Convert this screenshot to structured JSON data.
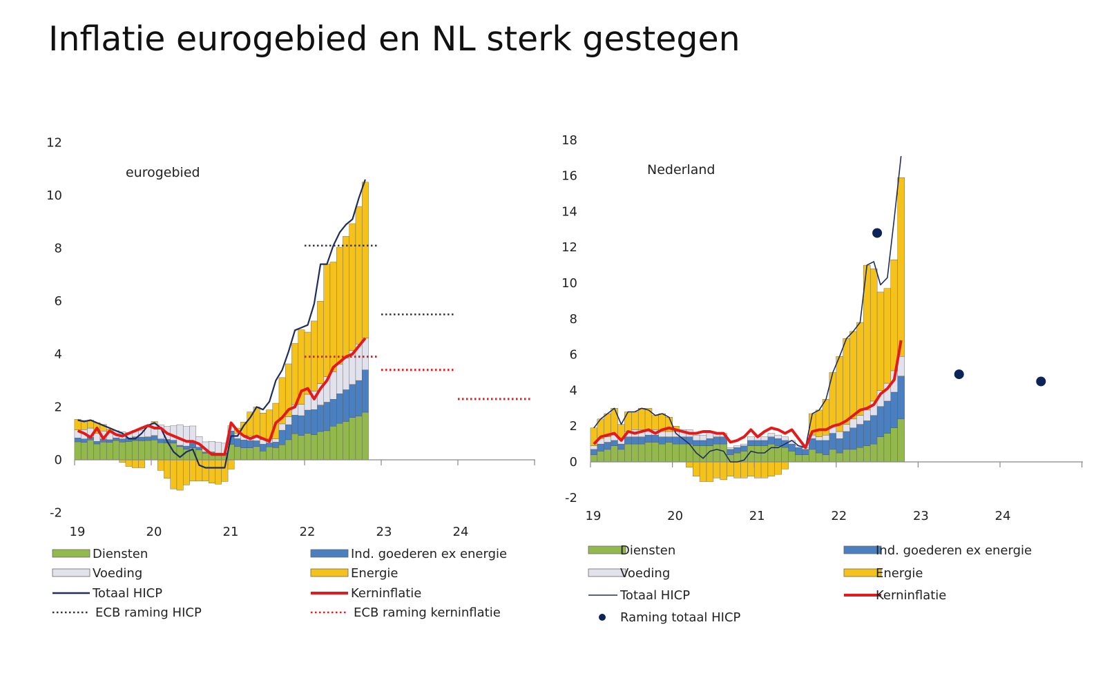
{
  "title": "Inflatie eurogebied en NL sterk gestegen",
  "colors": {
    "diensten": "#93b84d",
    "ind_goederen": "#4a7fc0",
    "voeding": "#e2e2ec",
    "energie": "#f5c21b",
    "totaal": "#1f2d5c",
    "kern": "#e41a1a",
    "ecb_hicp": "#333333",
    "ecb_kern": "#e41a1a",
    "raming": "#0d2458",
    "axis": "#888888"
  },
  "chart_data": [
    {
      "type": "bar",
      "stacked": true,
      "label": "eurogebied",
      "ylim": [
        -2,
        12
      ],
      "yticks": [
        "12",
        "10",
        "8",
        "6",
        "4",
        "2",
        "0",
        "-2"
      ],
      "xticks": [
        "19",
        "20",
        "21",
        "22",
        "23",
        "24"
      ],
      "months": 46,
      "series": [
        {
          "name": "Diensten",
          "values": [
            0.68,
            0.66,
            0.75,
            0.6,
            0.67,
            0.66,
            0.73,
            0.67,
            0.69,
            0.73,
            0.72,
            0.73,
            0.75,
            0.65,
            0.64,
            0.63,
            0.5,
            0.4,
            0.45,
            0.38,
            0.25,
            0.25,
            0.26,
            0.22,
            0.58,
            0.5,
            0.45,
            0.45,
            0.5,
            0.33,
            0.49,
            0.46,
            0.57,
            0.76,
            0.99,
            0.92,
            1.0,
            0.95,
            1.07,
            1.1,
            1.27,
            1.38,
            1.45,
            1.6,
            1.65,
            1.8
          ]
        },
        {
          "name": "Ind. goederen ex energie",
          "values": [
            0.15,
            0.13,
            0.1,
            0.1,
            0.12,
            0.1,
            0.1,
            0.12,
            0.14,
            0.14,
            0.14,
            0.14,
            0.17,
            0.14,
            0.13,
            0.11,
            0.05,
            0.12,
            0.2,
            0.1,
            0.05,
            0.05,
            0.0,
            0.03,
            0.51,
            0.3,
            0.3,
            0.28,
            0.22,
            0.26,
            0.15,
            0.21,
            0.55,
            0.57,
            0.7,
            0.75,
            0.88,
            0.95,
            1.0,
            1.08,
            1.02,
            1.12,
            1.2,
            1.25,
            1.35,
            1.6
          ]
        },
        {
          "name": "Voeding",
          "values": [
            0.3,
            0.35,
            0.35,
            0.3,
            0.3,
            0.3,
            0.27,
            0.27,
            0.2,
            0.24,
            0.26,
            0.36,
            0.43,
            0.53,
            0.49,
            0.55,
            0.78,
            0.74,
            0.63,
            0.4,
            0.38,
            0.4,
            0.4,
            0.38,
            0.2,
            0.2,
            0.18,
            0.18,
            0.18,
            0.18,
            0.15,
            0.12,
            0.24,
            0.3,
            0.39,
            0.43,
            0.6,
            0.7,
            0.81,
            0.96,
            1.04,
            1.12,
            1.2,
            1.28,
            1.38,
            1.2
          ]
        },
        {
          "name": "Energie",
          "values": [
            0.4,
            0.35,
            0.3,
            0.4,
            0.25,
            0.1,
            0.0,
            -0.1,
            -0.25,
            -0.3,
            -0.3,
            0.0,
            0.1,
            -0.4,
            -0.7,
            -1.1,
            -1.15,
            -0.95,
            -0.8,
            -0.8,
            -0.8,
            -0.88,
            -0.92,
            -0.82,
            -0.35,
            0.2,
            0.5,
            0.9,
            1.1,
            1.0,
            1.1,
            1.35,
            1.75,
            2.0,
            2.32,
            2.82,
            2.35,
            2.65,
            3.12,
            4.26,
            4.15,
            4.42,
            4.6,
            4.8,
            5.2,
            5.9
          ]
        }
      ],
      "lines": [
        {
          "name": "Totaal HICP",
          "values": [
            1.5,
            1.45,
            1.5,
            1.4,
            1.3,
            1.2,
            1.1,
            1.0,
            0.8,
            0.8,
            1.0,
            1.3,
            1.4,
            1.2,
            0.7,
            0.3,
            0.1,
            0.3,
            0.4,
            -0.2,
            -0.3,
            -0.3,
            -0.3,
            -0.3,
            0.9,
            0.9,
            1.3,
            1.6,
            2.0,
            1.9,
            2.2,
            3.0,
            3.4,
            4.1,
            4.9,
            5.0,
            5.1,
            5.9,
            7.4,
            7.4,
            8.1,
            8.6,
            8.9,
            9.1,
            9.9,
            10.6
          ]
        },
        {
          "name": "Kerninflatie",
          "values": [
            1.1,
            1.0,
            0.85,
            1.2,
            0.8,
            1.1,
            0.95,
            0.9,
            1.0,
            1.1,
            1.2,
            1.3,
            1.2,
            1.2,
            1.0,
            0.9,
            0.8,
            0.7,
            0.7,
            0.6,
            0.4,
            0.2,
            0.2,
            0.2,
            1.4,
            1.1,
            0.9,
            0.8,
            0.9,
            0.8,
            0.7,
            1.4,
            1.6,
            1.9,
            2.0,
            2.6,
            2.7,
            2.3,
            2.7,
            3.0,
            3.5,
            3.7,
            3.9,
            4.0,
            4.3,
            4.6
          ]
        }
      ],
      "ecb_raming_hicp": [
        {
          "year": "2022",
          "value": 8.1
        },
        {
          "year": "2023",
          "value": 5.5
        },
        {
          "year": "2024",
          "value": 2.3
        }
      ],
      "ecb_raming_kerninflatie": [
        {
          "year": "2022",
          "value": 3.9
        },
        {
          "year": "2023",
          "value": 3.4
        },
        {
          "year": "2024",
          "value": 2.3
        }
      ],
      "legend": [
        {
          "label": "Diensten",
          "kind": "box",
          "key": "diensten"
        },
        {
          "label": "Ind. goederen ex energie",
          "kind": "box",
          "key": "ind_goederen"
        },
        {
          "label": "Voeding",
          "kind": "box",
          "key": "voeding"
        },
        {
          "label": "Energie",
          "kind": "box",
          "key": "energie"
        },
        {
          "label": "Totaal HICP",
          "kind": "line",
          "key": "totaal"
        },
        {
          "label": "Kerninflatie",
          "kind": "line",
          "key": "kern"
        },
        {
          "label": "ECB raming HICP",
          "kind": "dotted",
          "key": "ecb_hicp"
        },
        {
          "label": "ECB raming kerninflatie",
          "kind": "dotted",
          "key": "ecb_kern"
        }
      ]
    },
    {
      "type": "bar",
      "stacked": true,
      "label": "Nederland",
      "ylim": [
        -2,
        18
      ],
      "yticks": [
        "18",
        "16",
        "14",
        "12",
        "10",
        "8",
        "6",
        "4",
        "2",
        "0",
        "-2"
      ],
      "xticks": [
        "19",
        "20",
        "21",
        "22",
        "23",
        "24"
      ],
      "months": 46,
      "series": [
        {
          "name": "Diensten",
          "values": [
            0.4,
            0.6,
            0.7,
            0.9,
            0.7,
            1.0,
            1.0,
            1.0,
            1.1,
            1.1,
            1.0,
            1.1,
            1.0,
            1.0,
            1.0,
            0.9,
            0.9,
            0.9,
            1.0,
            1.0,
            0.4,
            0.5,
            0.6,
            0.9,
            0.9,
            0.9,
            1.0,
            0.9,
            0.8,
            0.6,
            0.4,
            0.4,
            0.7,
            0.5,
            0.4,
            0.7,
            0.5,
            0.7,
            0.7,
            0.8,
            0.9,
            1.0,
            1.4,
            1.6,
            1.9,
            2.4
          ]
        },
        {
          "name": "Ind. goederen ex energie",
          "values": [
            0.3,
            0.4,
            0.4,
            0.3,
            0.3,
            0.4,
            0.4,
            0.4,
            0.4,
            0.4,
            0.4,
            0.3,
            0.4,
            0.4,
            0.4,
            0.3,
            0.3,
            0.4,
            0.4,
            0.4,
            0.3,
            0.3,
            0.3,
            0.3,
            0.3,
            0.3,
            0.4,
            0.4,
            0.4,
            0.4,
            0.4,
            0.3,
            0.6,
            0.7,
            0.8,
            0.9,
            0.8,
            1.0,
            1.2,
            1.3,
            1.4,
            1.6,
            1.7,
            1.8,
            2.0,
            2.4
          ]
        },
        {
          "name": "Voeding",
          "values": [
            0.2,
            0.3,
            0.3,
            0.3,
            0.3,
            0.3,
            0.4,
            0.4,
            0.3,
            0.3,
            0.3,
            0.3,
            0.3,
            0.4,
            0.4,
            0.3,
            0.3,
            0.4,
            0.2,
            0.2,
            0.1,
            0.1,
            0.1,
            0.2,
            0.2,
            0.2,
            0.2,
            0.2,
            0.2,
            0.2,
            0.1,
            0.1,
            0.2,
            0.2,
            0.3,
            0.4,
            0.4,
            0.4,
            0.5,
            0.5,
            0.6,
            0.8,
            0.9,
            1.0,
            1.2,
            1.1
          ]
        },
        {
          "name": "Energie",
          "values": [
            1.0,
            1.1,
            1.3,
            1.5,
            0.8,
            1.1,
            1.0,
            1.2,
            1.2,
            0.8,
            1.0,
            0.8,
            0.3,
            0.0,
            -0.3,
            -0.8,
            -1.1,
            -1.1,
            -0.9,
            -1.0,
            -0.8,
            -0.9,
            -0.9,
            -0.8,
            -0.9,
            -0.9,
            -0.8,
            -0.7,
            -0.4,
            0.0,
            0.0,
            0.0,
            1.2,
            1.5,
            2.0,
            3.0,
            4.2,
            4.8,
            4.9,
            5.2,
            8.1,
            7.4,
            5.5,
            5.3,
            6.2,
            10.0
          ]
        }
      ],
      "lines": [
        {
          "name": "Totaal HICP",
          "values": [
            1.9,
            2.4,
            2.7,
            3.0,
            2.1,
            2.8,
            2.8,
            3.0,
            2.9,
            2.6,
            2.7,
            2.5,
            1.6,
            1.3,
            1.0,
            0.5,
            0.2,
            0.6,
            0.7,
            0.6,
            0.0,
            0.0,
            0.1,
            0.6,
            0.5,
            0.5,
            0.8,
            0.8,
            1.0,
            1.2,
            0.9,
            0.8,
            2.7,
            2.9,
            3.5,
            5.0,
            5.9,
            6.9,
            7.3,
            7.8,
            11.0,
            11.2,
            9.9,
            10.3,
            13.6,
            17.1
          ]
        },
        {
          "name": "Kerninflatie",
          "values": [
            1.0,
            1.4,
            1.5,
            1.6,
            1.2,
            1.7,
            1.6,
            1.7,
            1.8,
            1.6,
            1.8,
            1.9,
            1.8,
            1.7,
            1.6,
            1.6,
            1.7,
            1.7,
            1.6,
            1.6,
            1.1,
            1.2,
            1.4,
            1.8,
            1.4,
            1.7,
            1.9,
            1.8,
            1.6,
            1.8,
            1.3,
            0.8,
            1.7,
            1.8,
            1.8,
            2.0,
            2.1,
            2.3,
            2.6,
            2.9,
            3.0,
            3.2,
            3.8,
            4.1,
            4.6,
            6.8
          ]
        }
      ],
      "raming_totaal_hicp": [
        {
          "year": "2022",
          "value": 12.8
        },
        {
          "year": "2023",
          "value": 4.9
        },
        {
          "year": "2024",
          "value": 4.5
        }
      ],
      "legend": [
        {
          "label": "Diensten",
          "kind": "box",
          "key": "diensten"
        },
        {
          "label": "Ind. goederen ex energie",
          "kind": "box",
          "key": "ind_goederen"
        },
        {
          "label": "Voeding",
          "kind": "box",
          "key": "voeding"
        },
        {
          "label": "Energie",
          "kind": "box",
          "key": "energie"
        },
        {
          "label": "Totaal HICP",
          "kind": "thinline",
          "key": "totaal"
        },
        {
          "label": "Kerninflatie",
          "kind": "line",
          "key": "kern"
        },
        {
          "label": "Raming totaal HICP",
          "kind": "dot",
          "key": "raming"
        }
      ]
    }
  ]
}
